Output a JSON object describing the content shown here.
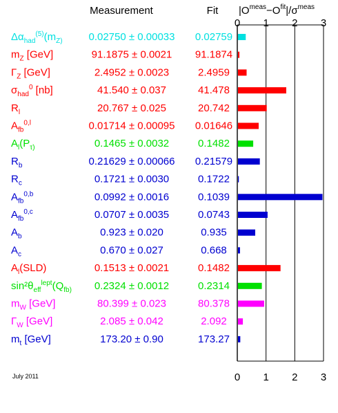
{
  "chart_data": {
    "type": "bar",
    "orientation": "horizontal",
    "headers": {
      "measurement": "Measurement",
      "fit": "Fit",
      "pull_axis": "|O^meas − O^fit|/σ^meas"
    },
    "xlim": [
      0,
      3
    ],
    "xticks": [
      "0",
      "1",
      "2",
      "3"
    ],
    "grid": "vertical lines at 0, 1, 2, 3",
    "rows": [
      {
        "label": "Δα_had^(5)(m_Z)",
        "measurement": "0.02750 ± 0.00033",
        "fit": "0.02759",
        "pull": 0.27,
        "color": "#00e0e0"
      },
      {
        "label": "m_Z [GeV]",
        "measurement": "91.1875 ± 0.0021",
        "fit": "91.1874",
        "pull": 0.05,
        "color": "#ff0000"
      },
      {
        "label": "Γ_Z [GeV]",
        "measurement": "2.4952 ± 0.0023",
        "fit": "2.4959",
        "pull": 0.3,
        "color": "#ff0000"
      },
      {
        "label": "σ_had^0 [nb]",
        "measurement": "41.540 ± 0.037",
        "fit": "41.478",
        "pull": 1.68,
        "color": "#ff0000"
      },
      {
        "label": "R_l",
        "measurement": "20.767 ± 0.025",
        "fit": "20.742",
        "pull": 1.0,
        "color": "#ff0000"
      },
      {
        "label": "A_fb^0,l",
        "measurement": "0.01714 ± 0.00095",
        "fit": "0.01646",
        "pull": 0.72,
        "color": "#ff0000"
      },
      {
        "label": "A_l(P_τ)",
        "measurement": "0.1465 ± 0.0032",
        "fit": "0.1482",
        "pull": 0.53,
        "color": "#00e000"
      },
      {
        "label": "R_b",
        "measurement": "0.21629 ± 0.00066",
        "fit": "0.21579",
        "pull": 0.76,
        "color": "#0000d0"
      },
      {
        "label": "R_c",
        "measurement": "0.1721 ± 0.0030",
        "fit": "0.1722",
        "pull": 0.03,
        "color": "#0000d0"
      },
      {
        "label": "A_fb^0,b",
        "measurement": "0.0992 ± 0.0016",
        "fit": "0.1039",
        "pull": 2.94,
        "color": "#0000d0"
      },
      {
        "label": "A_fb^0,c",
        "measurement": "0.0707 ± 0.0035",
        "fit": "0.0743",
        "pull": 1.03,
        "color": "#0000d0"
      },
      {
        "label": "A_b",
        "measurement": "0.923 ± 0.020",
        "fit": "0.935",
        "pull": 0.6,
        "color": "#0000d0"
      },
      {
        "label": "A_c",
        "measurement": "0.670 ± 0.027",
        "fit": "0.668",
        "pull": 0.07,
        "color": "#0000d0"
      },
      {
        "label": "A_l(SLD)",
        "measurement": "0.1513 ± 0.0021",
        "fit": "0.1482",
        "pull": 1.48,
        "color": "#ff0000"
      },
      {
        "label": "sin²θ_eff^lept(Q_fb)",
        "measurement": "0.2324 ± 0.0012",
        "fit": "0.2314",
        "pull": 0.83,
        "color": "#00e000"
      },
      {
        "label": "m_W [GeV]",
        "measurement": "80.399 ± 0.023",
        "fit": "80.378",
        "pull": 0.91,
        "color": "#ff00ff"
      },
      {
        "label": "Γ_W [GeV]",
        "measurement": "2.085 ± 0.042",
        "fit": "2.092",
        "pull": 0.17,
        "color": "#ff00ff"
      },
      {
        "label": "m_t [GeV]",
        "measurement": "173.20 ± 0.90",
        "fit": "173.27",
        "pull": 0.08,
        "color": "#0000d0"
      }
    ]
  },
  "footer": {
    "date": "July 2011"
  }
}
